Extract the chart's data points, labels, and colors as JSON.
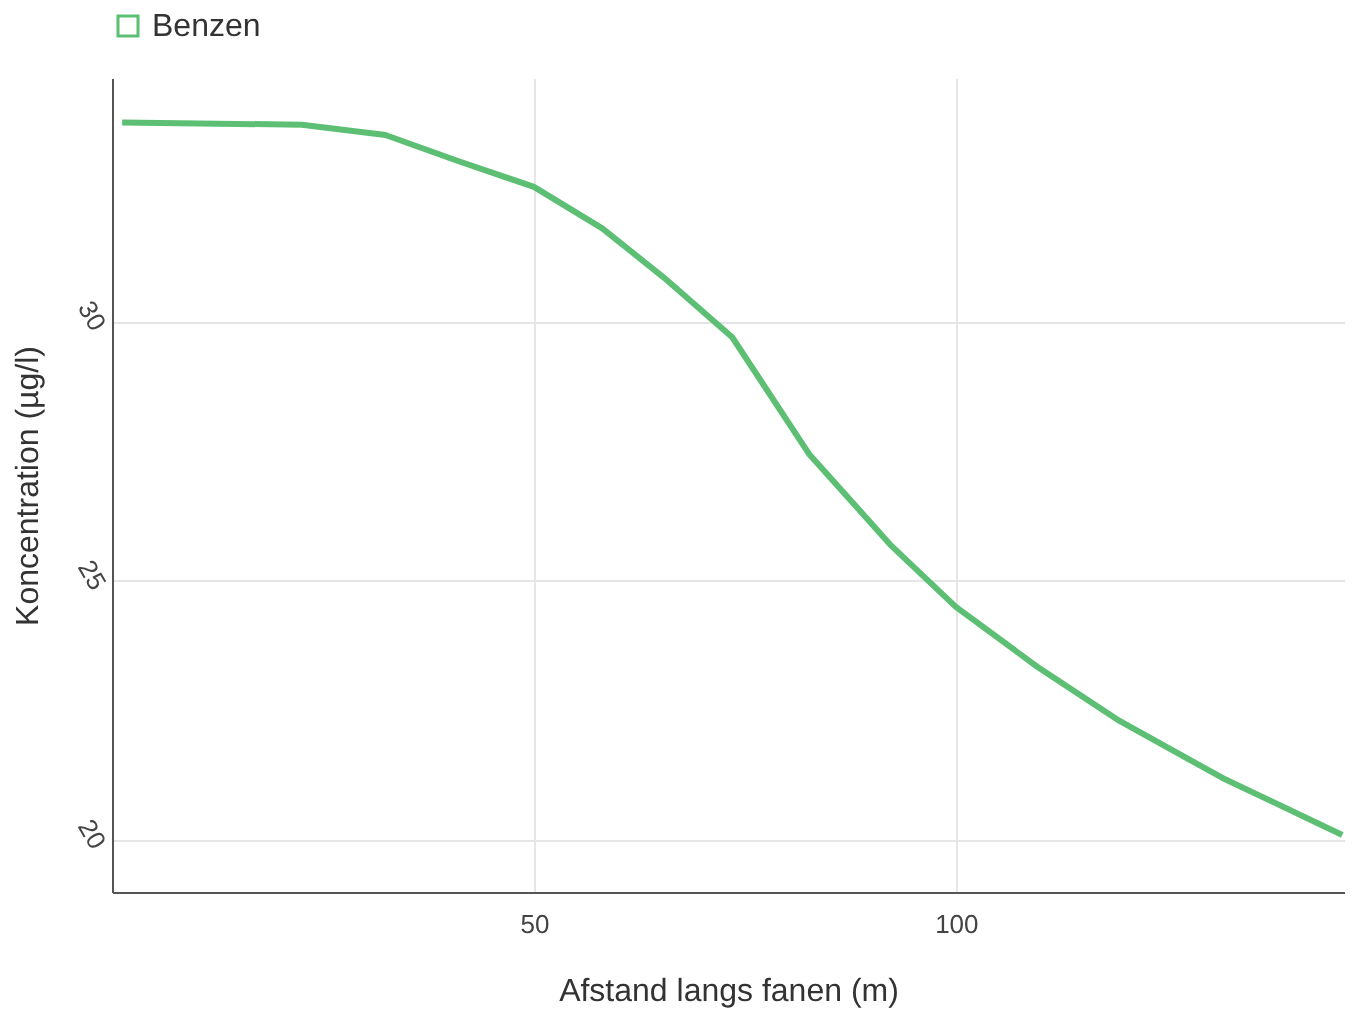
{
  "chart_data": {
    "type": "line",
    "xlabel": "Afstand langs fanen (m)",
    "ylabel": "Koncentration (µg/l)",
    "xlim": [
      0,
      146
    ],
    "ylim": [
      19,
      34.7
    ],
    "xticks": [
      50,
      100
    ],
    "yticks": [
      20,
      25,
      30
    ],
    "grid": true,
    "legend": "top",
    "line_style": "solid",
    "marker": "none",
    "series": [
      {
        "name": "Benzen",
        "color": "#5cbf73",
        "x": [
          1.2,
          22.5,
          32.4,
          41,
          50,
          58.1,
          65.4,
          73.5,
          82.6,
          92.4,
          100,
          109.6,
          119.4,
          131.6,
          145.8
        ],
        "values": [
          33.84,
          33.8,
          33.6,
          33.1,
          32.6,
          31.8,
          30.85,
          29.7,
          27.45,
          25.67,
          24.5,
          23.35,
          22.3,
          21.2,
          20.1
        ]
      }
    ]
  }
}
